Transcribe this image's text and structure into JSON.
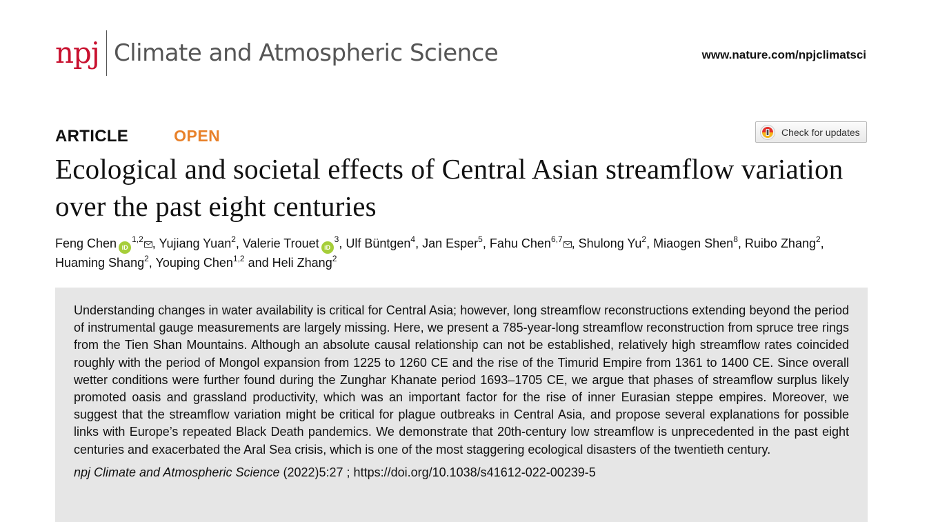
{
  "header": {
    "logo": "npj",
    "journal": "Climate and Atmospheric Science",
    "url": "www.nature.com/npjclimatsci"
  },
  "article": {
    "type": "ARTICLE",
    "access": "OPEN",
    "check_updates": "Check for updates",
    "title": "Ecological and societal effects of Central Asian streamflow variation over the past eight centuries"
  },
  "authors": [
    {
      "name": "Feng Chen",
      "orcid": true,
      "aff": "1,2",
      "corresponding": true
    },
    {
      "name": "Yujiang Yuan",
      "orcid": false,
      "aff": "2",
      "corresponding": false
    },
    {
      "name": "Valerie Trouet",
      "orcid": true,
      "aff": "3",
      "corresponding": false
    },
    {
      "name": "Ulf Büntgen",
      "orcid": false,
      "aff": "4",
      "corresponding": false
    },
    {
      "name": "Jan Esper",
      "orcid": false,
      "aff": "5",
      "corresponding": false
    },
    {
      "name": "Fahu Chen",
      "orcid": false,
      "aff": "6,7",
      "corresponding": true
    },
    {
      "name": "Shulong Yu",
      "orcid": false,
      "aff": "2",
      "corresponding": false
    },
    {
      "name": "Miaogen Shen",
      "orcid": false,
      "aff": "8",
      "corresponding": false
    },
    {
      "name": "Ruibo Zhang",
      "orcid": false,
      "aff": "2",
      "corresponding": false
    },
    {
      "name": "Huaming Shang",
      "orcid": false,
      "aff": "2",
      "corresponding": false
    },
    {
      "name": "Youping Chen",
      "orcid": false,
      "aff": "1,2",
      "corresponding": false
    },
    {
      "name": "Heli Zhang",
      "orcid": false,
      "aff": "2",
      "corresponding": false
    }
  ],
  "abstract": "Understanding changes in water availability is critical for Central Asia; however, long streamflow reconstructions extending beyond the period of instrumental gauge measurements are largely missing. Here, we present a 785-year-long streamflow reconstruction from spruce tree rings from the Tien Shan Mountains. Although an absolute causal relationship can not be established, relatively high streamflow rates coincided roughly with the period of Mongol expansion from 1225 to 1260 CE and the rise of the Timurid Empire from 1361 to 1400 CE. Since overall wetter conditions were further found during the Zunghar Khanate period 1693–1705 CE, we argue that phases of streamflow surplus likely promoted oasis and grassland productivity, which was an important factor for the rise of inner Eurasian steppe empires. Moreover, we suggest that the streamflow variation might be critical for plague outbreaks in Central Asia, and propose several explanations for possible links with Europe’s repeated Black Death pandemics. We demonstrate that 20th-century low streamflow is unprecedented in the past eight centuries and exacerbated the Aral Sea crisis, which is one of the most staggering ecological disasters of the twentieth century.",
  "citation": {
    "journal": "npj Climate and Atmospheric Science",
    "details": " (2022)5:27 ; https://doi.org/10.1038/s41612-022-00239-5"
  },
  "icons": {
    "orcid": "orcid-icon",
    "mail": "mail-icon",
    "updates": "crossmark-icon"
  },
  "colors": {
    "brand": "#c8102e",
    "open": "#e8812a",
    "orcid": "#a6ce39",
    "abstract_bg": "#e6e6e6"
  }
}
